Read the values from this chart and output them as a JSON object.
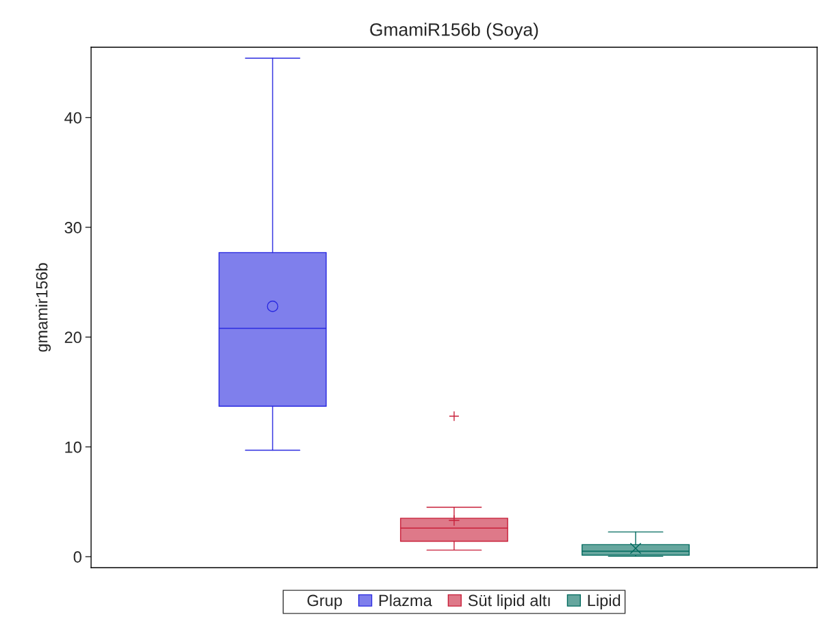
{
  "chart_data": {
    "type": "box",
    "title": "GmamiR156b (Soya)",
    "ylabel": "gmamir156b",
    "legend_title": "Grup",
    "categories": [
      null,
      null,
      null
    ],
    "ylim": [
      -1,
      46.4
    ],
    "yticks": [
      0,
      10,
      20,
      30,
      40
    ],
    "grid": false,
    "legend": "bottom",
    "series": [
      {
        "name": "Plazma",
        "color": "#2a2ae0",
        "marker": "circle",
        "boxes": [
          {
            "low": 9.7,
            "q1": 13.7,
            "median": 20.8,
            "q3": 27.7,
            "high": 45.4,
            "mean": 22.8
          },
          null,
          null
        ]
      },
      {
        "name": "Süt lipid altı",
        "color": "#c8203a",
        "marker": "cross",
        "boxes": [
          null,
          {
            "low": 0.6,
            "q1": 1.4,
            "median": 2.6,
            "q3": 3.5,
            "high": 4.5,
            "mean": 3.3,
            "outliers": [
              12.8
            ]
          },
          null
        ]
      },
      {
        "name": "Lipid",
        "color": "#006a5e",
        "marker": "x",
        "boxes": [
          null,
          null,
          {
            "low": 0.04,
            "q1": 0.14,
            "median": 0.5,
            "q3": 1.1,
            "high": 2.25,
            "mean": 0.75
          }
        ]
      }
    ]
  }
}
